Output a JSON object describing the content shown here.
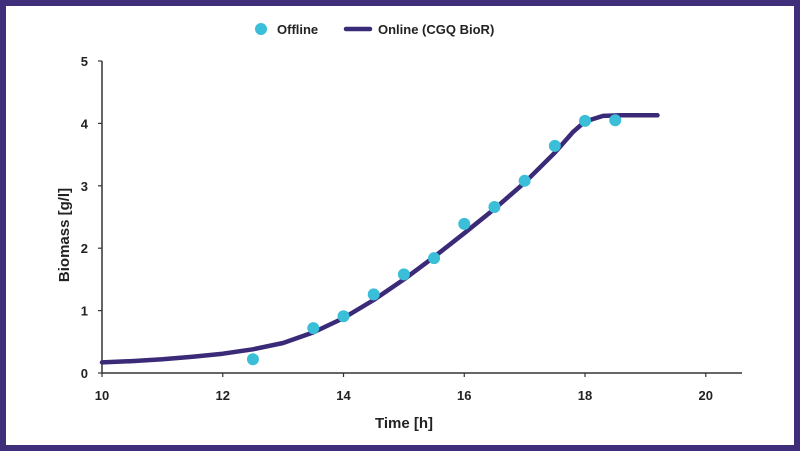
{
  "chart_data": {
    "type": "line",
    "xlabel": "Time [h]",
    "ylabel": "Biomass [g/l]",
    "xlim": [
      10,
      20.6
    ],
    "ylim": [
      0,
      5
    ],
    "xticks": [
      10,
      12,
      14,
      16,
      18,
      20
    ],
    "yticks": [
      0,
      1,
      2,
      3,
      4,
      5
    ],
    "grid": false,
    "legend_position": "top-center",
    "series": [
      {
        "name": "Offline",
        "kind": "scatter",
        "color": "#3bbfd9",
        "points": [
          [
            12.5,
            0.22
          ],
          [
            13.5,
            0.72
          ],
          [
            14.0,
            0.91
          ],
          [
            14.5,
            1.26
          ],
          [
            15.0,
            1.58
          ],
          [
            15.5,
            1.84
          ],
          [
            16.0,
            2.39
          ],
          [
            16.5,
            2.66
          ],
          [
            17.0,
            3.08
          ],
          [
            17.5,
            3.64
          ],
          [
            18.0,
            4.04
          ],
          [
            18.5,
            4.05
          ]
        ]
      },
      {
        "name": "Online (CGQ BioR)",
        "kind": "line",
        "color": "#3a2a78",
        "points": [
          [
            10.0,
            0.17
          ],
          [
            10.5,
            0.19
          ],
          [
            11.0,
            0.22
          ],
          [
            11.5,
            0.26
          ],
          [
            12.0,
            0.31
          ],
          [
            12.5,
            0.38
          ],
          [
            13.0,
            0.48
          ],
          [
            13.5,
            0.65
          ],
          [
            14.0,
            0.88
          ],
          [
            14.5,
            1.17
          ],
          [
            15.0,
            1.5
          ],
          [
            15.5,
            1.86
          ],
          [
            16.0,
            2.24
          ],
          [
            16.5,
            2.63
          ],
          [
            17.0,
            3.05
          ],
          [
            17.5,
            3.53
          ],
          [
            17.8,
            3.86
          ],
          [
            18.0,
            4.03
          ],
          [
            18.3,
            4.12
          ],
          [
            18.6,
            4.13
          ],
          [
            19.2,
            4.13
          ]
        ]
      }
    ]
  }
}
